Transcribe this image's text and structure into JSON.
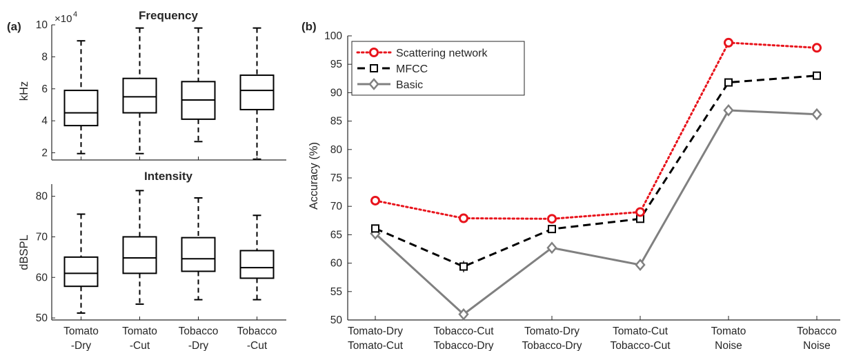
{
  "panels": {
    "a": {
      "label": "(a)"
    },
    "b": {
      "label": "(b)"
    }
  },
  "chart_data": [
    {
      "type": "box",
      "panel": "(a)",
      "title": "Frequency",
      "ylabel": "kHz",
      "exponent_label": "×10",
      "exponent_power": "4",
      "ylim": [
        1.55,
        10
      ],
      "yticks": [
        2,
        4,
        6,
        8,
        10
      ],
      "yticklabels": [
        "2",
        "4",
        "6",
        "8",
        "10"
      ],
      "categories": [
        [
          "Tomato",
          "-Dry"
        ],
        [
          "Tomato",
          "-Cut"
        ],
        [
          "Tobacco",
          "-Dry"
        ],
        [
          "Tobacco",
          "-Cut"
        ]
      ],
      "show_categories": false,
      "boxes": [
        {
          "min": 1.95,
          "q1": 3.7,
          "median": 4.5,
          "q3": 5.9,
          "max": 9.0
        },
        {
          "min": 1.95,
          "q1": 4.5,
          "median": 5.5,
          "q3": 6.65,
          "max": 9.8
        },
        {
          "min": 2.7,
          "q1": 4.1,
          "median": 5.3,
          "q3": 6.45,
          "max": 9.8
        },
        {
          "min": 1.6,
          "q1": 4.7,
          "median": 5.9,
          "q3": 6.85,
          "max": 9.8
        }
      ]
    },
    {
      "type": "box",
      "panel": "(a)",
      "title": "Intensity",
      "ylabel": "dBSPL",
      "ylim": [
        49.5,
        83
      ],
      "yticks": [
        50,
        60,
        70,
        80
      ],
      "yticklabels": [
        "50",
        "60",
        "70",
        "80"
      ],
      "categories": [
        [
          "Tomato",
          "-Dry"
        ],
        [
          "Tomato",
          "-Cut"
        ],
        [
          "Tobacco",
          "-Dry"
        ],
        [
          "Tobacco",
          "-Cut"
        ]
      ],
      "show_categories": true,
      "boxes": [
        {
          "min": 51.2,
          "q1": 57.8,
          "median": 61.0,
          "q3": 65.0,
          "max": 75.6
        },
        {
          "min": 53.4,
          "q1": 61.0,
          "median": 64.8,
          "q3": 70.0,
          "max": 81.4
        },
        {
          "min": 54.5,
          "q1": 61.5,
          "median": 64.6,
          "q3": 69.8,
          "max": 79.6
        },
        {
          "min": 54.5,
          "q1": 59.8,
          "median": 62.4,
          "q3": 66.6,
          "max": 75.3
        }
      ]
    },
    {
      "type": "line",
      "panel": "(b)",
      "title": "",
      "xlabel": "",
      "ylabel": "Accuracy (%)",
      "ylim": [
        50,
        100
      ],
      "yticks": [
        50,
        55,
        60,
        65,
        70,
        75,
        80,
        85,
        90,
        95,
        100
      ],
      "yticklabels": [
        "50",
        "55",
        "60",
        "65",
        "70",
        "75",
        "80",
        "85",
        "90",
        "95",
        "100"
      ],
      "categories": [
        [
          "Tomato-Dry",
          "Tomato-Cut"
        ],
        [
          "Tobacco-Cut",
          "Tobacco-Dry"
        ],
        [
          "Tomato-Dry",
          "Tobacco-Dry"
        ],
        [
          "Tomato-Cut",
          "Tobacco-Cut"
        ],
        [
          "Tomato",
          "Noise"
        ],
        [
          "Tobacco",
          "Noise"
        ]
      ],
      "legend_position": "top-left",
      "grid": false,
      "series": [
        {
          "name": "Scattering network",
          "color": "#e8141c",
          "dash": "dotted",
          "marker": "circle",
          "values": [
            71.0,
            67.9,
            67.8,
            69.0,
            98.8,
            97.9
          ],
          "errors": [
            0.3,
            0.6,
            0.5,
            0.5,
            0.3,
            0.3
          ]
        },
        {
          "name": "MFCC",
          "color": "#000000",
          "dash": "dashed",
          "marker": "square",
          "values": [
            66.1,
            59.4,
            66.0,
            67.8,
            91.8,
            93.0
          ],
          "errors": [
            0.3,
            1.0,
            0.6,
            0.4,
            0.3,
            0.3
          ]
        },
        {
          "name": "Basic",
          "color": "#808080",
          "dash": "solid",
          "marker": "diamond",
          "values": [
            65.2,
            51.0,
            62.7,
            59.7,
            86.9,
            86.2
          ],
          "errors": [
            0.4,
            1.0,
            0.6,
            0.4,
            0.3,
            0.3
          ]
        }
      ]
    }
  ]
}
